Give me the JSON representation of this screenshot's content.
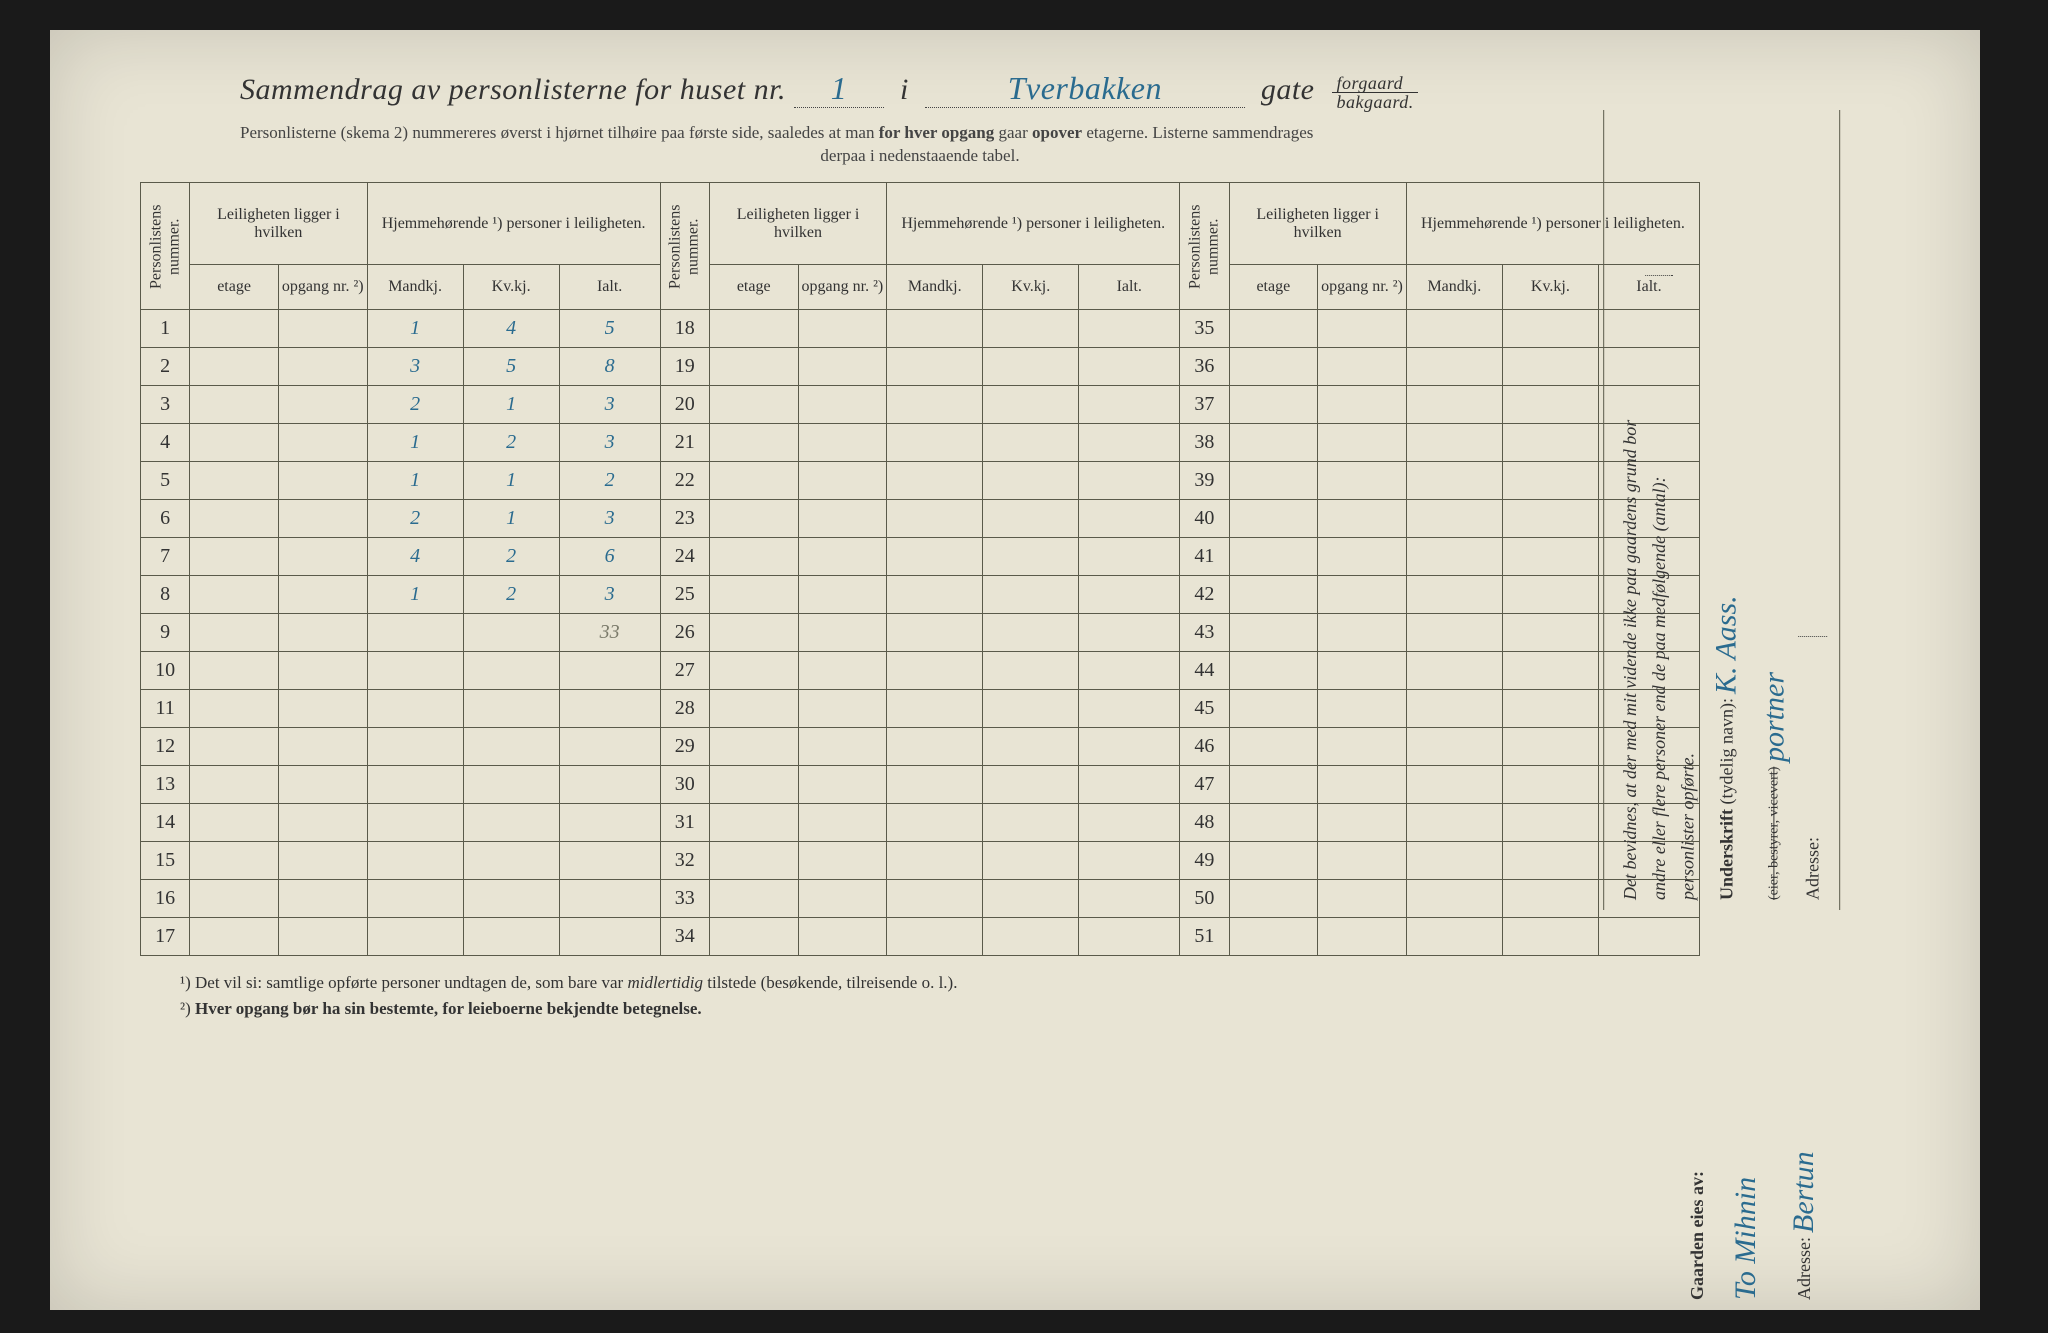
{
  "header": {
    "title_prefix": "Sammendrag av personlisterne for huset nr.",
    "house_nr": "1",
    "i": "i",
    "street": "Tverbakken",
    "gate": "gate",
    "forgaard": "forgaard",
    "bakgaard": "bakgaard.",
    "sub1a": "Personlisterne (skema 2) nummereres øverst i hjørnet tilhøire paa første side, saaledes at man ",
    "sub1b": "for hver opgang",
    "sub1c": " gaar ",
    "sub1d": "opover",
    "sub1e": " etagerne.   Listerne sammendrages",
    "sub2": "derpaa i nedenstaaende tabel."
  },
  "colheads": {
    "personlistens": "Personlistens nummer.",
    "leiligheten": "Leiligheten ligger i hvilken",
    "hjemme": "Hjemmehørende ¹) personer i leiligheten.",
    "etage": "etage",
    "opgang": "opgang nr. ²)",
    "mandkj": "Mandkj.",
    "kvkj": "Kv.kj.",
    "ialt": "Ialt."
  },
  "block1_start": 1,
  "block2_start": 18,
  "block3_start": 35,
  "rows": [
    {
      "m": "1",
      "k": "4",
      "i": "5"
    },
    {
      "m": "3",
      "k": "5",
      "i": "8"
    },
    {
      "m": "2",
      "k": "1",
      "i": "3"
    },
    {
      "m": "1",
      "k": "2",
      "i": "3"
    },
    {
      "m": "1",
      "k": "1",
      "i": "2"
    },
    {
      "m": "2",
      "k": "1",
      "i": "3"
    },
    {
      "m": "4",
      "k": "2",
      "i": "6"
    },
    {
      "m": "1",
      "k": "2",
      "i": "3"
    }
  ],
  "total": "33",
  "footnotes": {
    "f1": "¹) Det vil si: samtlige opførte personer undtagen de, som bare var ",
    "f1i": "midlertidig",
    "f1b": " tilstede (besøkende, tilreisende o. l.).",
    "f2a": "²) ",
    "f2b": "Hver opgang bør ha sin bestemte, for leieboerne bekjendte betegnelse."
  },
  "sidebar1": {
    "l1": "Det bevidnes, at der med mit vidende ikke paa gaardens grund bor",
    "l2": "andre eller flere personer end de paa medfølgende (antal):",
    "l3": "personlister opførte.",
    "under": "Underskrift",
    "under_note": " (tydelig navn):",
    "sig_name": "K. Aass.",
    "sig_role": "portner",
    "adresse": "Adresse:"
  },
  "sidebar2": {
    "gaarden": "Gaarden eies av:",
    "owner": "To Mihnin",
    "adresse": "Adresse:",
    "addr_val": "Bertun"
  }
}
